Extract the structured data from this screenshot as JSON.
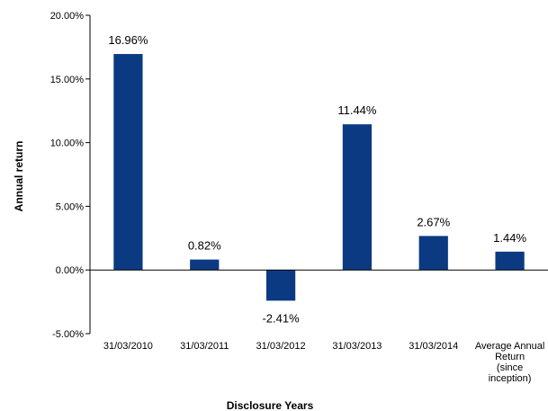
{
  "chart_data": {
    "type": "bar",
    "title": "",
    "xlabel": "Disclosure Years",
    "ylabel": "Annual return",
    "ylim": [
      -5,
      20
    ],
    "yticks": [
      20,
      15,
      10,
      5,
      0,
      -5
    ],
    "ytick_labels": [
      "20.00%",
      "15.00%",
      "10.00%",
      "5.00%",
      "0.00%",
      "-5.00%"
    ],
    "categories": [
      [
        "31/03/2010"
      ],
      [
        "31/03/2011"
      ],
      [
        "31/03/2012"
      ],
      [
        "31/03/2013"
      ],
      [
        "31/03/2014"
      ],
      [
        "Average Annual",
        "Return",
        "(since",
        "inception)"
      ]
    ],
    "values": [
      16.96,
      0.82,
      -2.41,
      11.44,
      2.67,
      1.44
    ],
    "data_labels": [
      "16.96%",
      "0.82%",
      "-2.41%",
      "11.44%",
      "2.67%",
      "1.44%"
    ],
    "bar_color": "#0b3a82",
    "grid": false,
    "legend": "none"
  }
}
